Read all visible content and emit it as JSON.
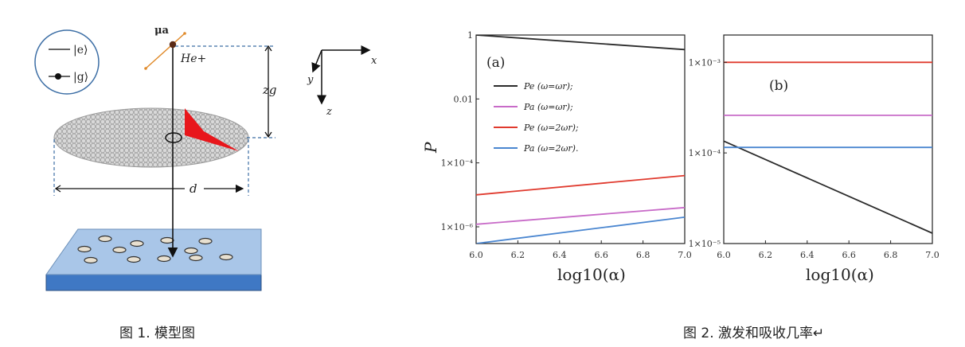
{
  "figure1": {
    "caption": "图 1. 模型图",
    "legend": {
      "excited": "|e⟩",
      "ground": "|g⟩"
    },
    "labels": {
      "dipole": "μa",
      "atom": "He+",
      "height": "zg",
      "diameter": "d",
      "axis_x": "x",
      "axis_y": "y",
      "axis_z": "z"
    }
  },
  "figure2": {
    "caption": "图 2. 激发和吸收几率↵",
    "panel_a_label": "(a)",
    "panel_b_label": "(b)",
    "xlabel": "log10(α)",
    "ylabel": "P",
    "legend": [
      "Pe (ω=ωr);",
      "Pa (ω=ωr);",
      "Pe (ω=2ωr);",
      "Pa (ω=2ωr)."
    ],
    "colors": {
      "black": "#2b2b2b",
      "magenta": "#c86bc8",
      "red": "#e03a2e",
      "blue": "#4a86d0"
    }
  },
  "chart_data": [
    {
      "type": "line",
      "title": "(a)",
      "xlabel": "log10(α)",
      "ylabel": "P",
      "yscale": "log",
      "xlim": [
        6.0,
        7.0
      ],
      "ylim": [
        3e-07,
        1
      ],
      "x_ticks": [
        "6.0",
        "6.2",
        "6.4",
        "6.6",
        "6.8",
        "7.0"
      ],
      "y_ticks": [
        "1",
        "0.01",
        "1×10⁻⁴",
        "1×10⁻⁶"
      ],
      "legend_position": "upper-left",
      "series": [
        {
          "name": "Pe (ω=ωr);",
          "color": "#2b2b2b",
          "x": [
            6.0,
            7.0
          ],
          "y": [
            1.0,
            0.35
          ]
        },
        {
          "name": "Pa (ω=ωr);",
          "color": "#c86bc8",
          "x": [
            6.0,
            7.0
          ],
          "y": [
            1.2e-06,
            4e-06
          ]
        },
        {
          "name": "Pe (ω=2ωr);",
          "color": "#e03a2e",
          "x": [
            6.0,
            7.0
          ],
          "y": [
            1e-05,
            4e-05
          ]
        },
        {
          "name": "Pa (ω=2ωr).",
          "color": "#4a86d0",
          "x": [
            6.0,
            7.0
          ],
          "y": [
            3e-07,
            2e-06
          ]
        }
      ]
    },
    {
      "type": "line",
      "title": "(b)",
      "xlabel": "log10(α)",
      "ylabel": "",
      "yscale": "log",
      "xlim": [
        6.0,
        7.0
      ],
      "ylim": [
        1e-05,
        0.002
      ],
      "x_ticks": [
        "6.0",
        "6.2",
        "6.4",
        "6.6",
        "6.8",
        "7.0"
      ],
      "y_ticks": [
        "1×10⁻³",
        "1×10⁻⁴",
        "1×10⁻⁵"
      ],
      "series": [
        {
          "name": "Pe (ω=ωr);",
          "color": "#2b2b2b",
          "x": [
            6.0,
            7.0
          ],
          "y": [
            0.000135,
            1.3e-05
          ]
        },
        {
          "name": "Pa (ω=ωr);",
          "color": "#c86bc8",
          "x": [
            6.0,
            7.0
          ],
          "y": [
            0.00026,
            0.00026
          ]
        },
        {
          "name": "Pe (ω=2ωr);",
          "color": "#e03a2e",
          "x": [
            6.0,
            7.0
          ],
          "y": [
            0.001,
            0.001
          ]
        },
        {
          "name": "Pa (ω=2ωr).",
          "color": "#4a86d0",
          "x": [
            6.0,
            7.0
          ],
          "y": [
            0.000115,
            0.000115
          ]
        }
      ]
    }
  ]
}
